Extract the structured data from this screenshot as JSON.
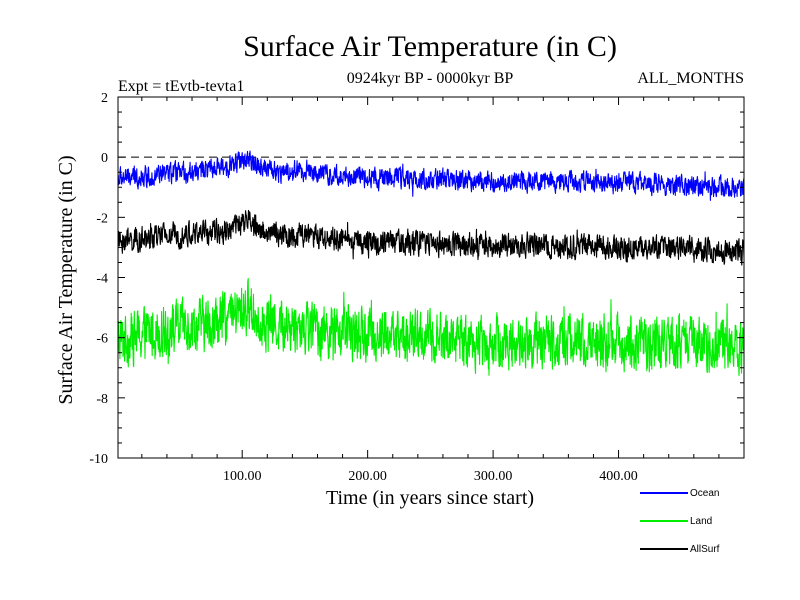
{
  "chart_data": {
    "type": "line",
    "title": "Surface Air Temperature (in C)",
    "expt_label": "Expt = tEvtb-tevta1",
    "subtitle": "0924kyr BP - 0000kyr BP",
    "months_label": "ALL_MONTHS",
    "xlabel": "Time (in years since start)",
    "ylabel": "Surface Air Temperature (in C)",
    "xlim": [
      1,
      500
    ],
    "ylim": [
      -10,
      2
    ],
    "x_ticks": [
      100,
      200,
      300,
      400
    ],
    "x_tick_labels": [
      "100.00",
      "200.00",
      "300.00",
      "400.00"
    ],
    "y_ticks": [
      -10,
      -8,
      -6,
      -4,
      -2,
      0,
      2
    ],
    "y_tick_labels": [
      "-10",
      "-8",
      "-6",
      "-4",
      "-2",
      "0",
      "2"
    ],
    "reference_line": 0,
    "legend_position": "bottom-right",
    "series": [
      {
        "name": "Ocean",
        "color": "#0000ff",
        "x_key": [
          1,
          20,
          40,
          60,
          80,
          95,
          105,
          115,
          130,
          150,
          175,
          200,
          250,
          300,
          350,
          400,
          450,
          500
        ],
        "mean": [
          -0.7,
          -0.65,
          -0.55,
          -0.5,
          -0.4,
          -0.2,
          -0.05,
          -0.3,
          -0.5,
          -0.45,
          -0.6,
          -0.65,
          -0.75,
          -0.8,
          -0.8,
          -0.85,
          -0.95,
          -1.05
        ],
        "noise_amplitude": 0.35
      },
      {
        "name": "Land",
        "color": "#00ee00",
        "x_key": [
          1,
          20,
          40,
          60,
          80,
          95,
          105,
          115,
          130,
          150,
          175,
          200,
          250,
          300,
          350,
          400,
          450,
          500
        ],
        "mean": [
          -6.1,
          -5.9,
          -5.7,
          -5.6,
          -5.5,
          -5.2,
          -5.0,
          -5.4,
          -5.6,
          -5.6,
          -5.8,
          -5.9,
          -6.0,
          -6.2,
          -6.1,
          -6.15,
          -6.2,
          -6.3
        ],
        "noise_amplitude": 0.9
      },
      {
        "name": "AllSurf",
        "color": "#000000",
        "x_key": [
          1,
          20,
          40,
          60,
          80,
          95,
          105,
          115,
          130,
          150,
          175,
          200,
          250,
          300,
          350,
          400,
          450,
          500
        ],
        "mean": [
          -2.8,
          -2.75,
          -2.6,
          -2.55,
          -2.5,
          -2.3,
          -2.1,
          -2.45,
          -2.6,
          -2.6,
          -2.75,
          -2.8,
          -2.85,
          -2.95,
          -2.95,
          -3.0,
          -3.05,
          -3.15
        ],
        "noise_amplitude": 0.42
      }
    ]
  }
}
